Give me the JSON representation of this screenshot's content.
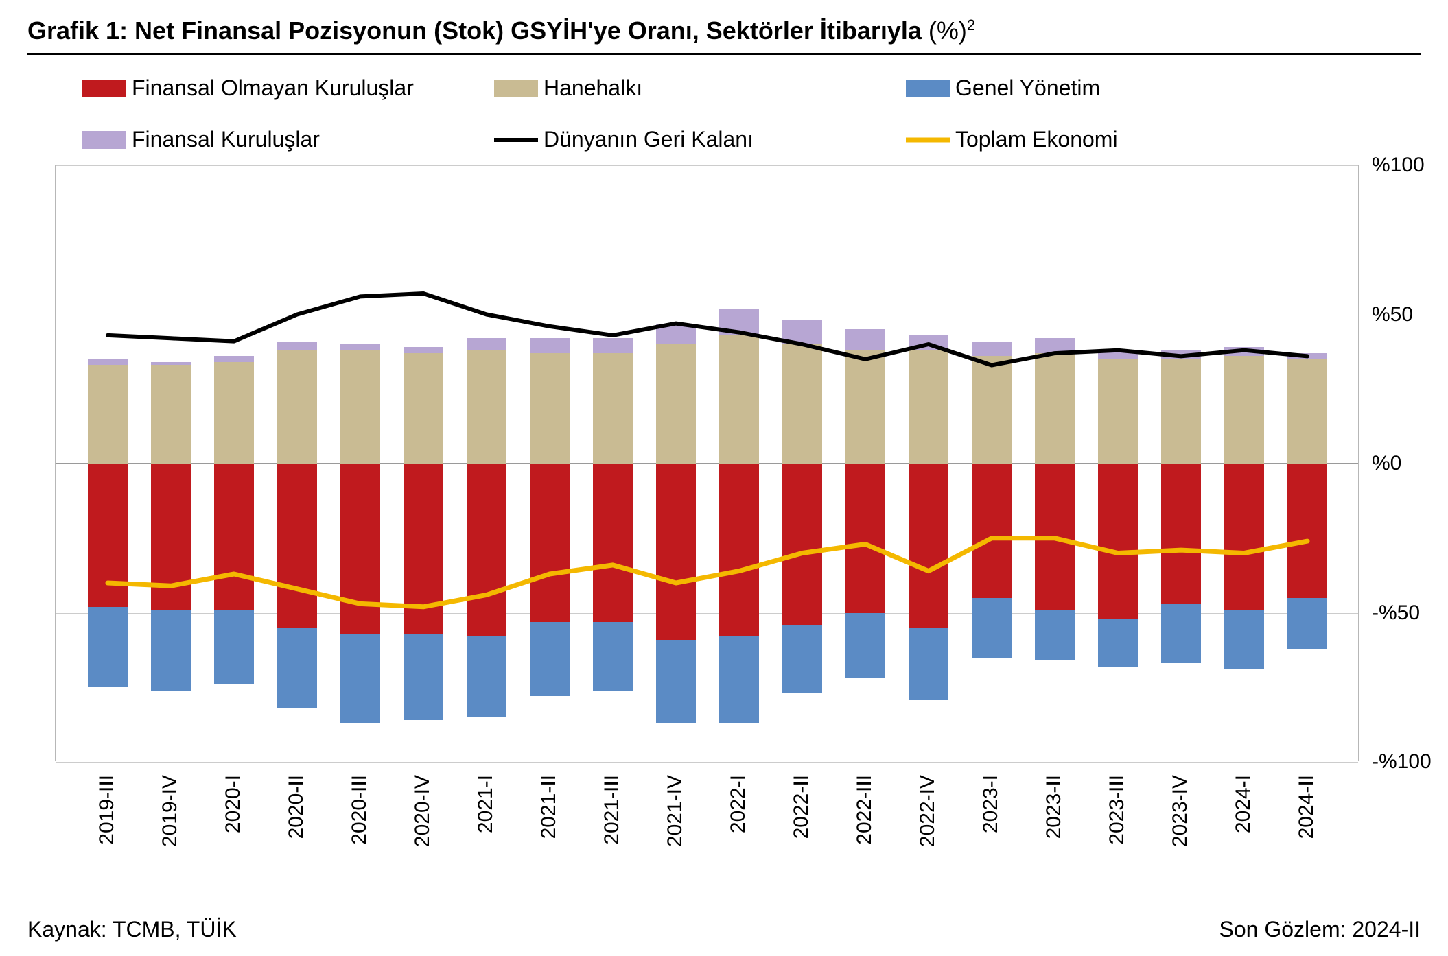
{
  "title": {
    "main": "Grafik 1: Net Finansal Pozisyonun (Stok) GSYİH'ye Oranı, Sektörler İtibarıyla",
    "suffix": " (%)",
    "superscript": "2",
    "fontsize_pt": 27,
    "fontweight": "700",
    "color": "#000000",
    "underline_color": "#000000"
  },
  "footer": {
    "source_label": "Kaynak: TCMB, TÜİK",
    "last_obs_label": "Son Gözlem: 2024-II",
    "fontsize_pt": 24,
    "color": "#000000"
  },
  "legend": {
    "fontsize_pt": 24,
    "items": [
      {
        "key": "nonfin",
        "label": "Finansal Olmayan Kuruluşlar",
        "type": "bar",
        "color": "#c01a1e"
      },
      {
        "key": "house",
        "label": "Hanehalkı",
        "type": "bar",
        "color": "#c9bb93"
      },
      {
        "key": "gov",
        "label": "Genel Yönetim",
        "type": "bar",
        "color": "#5b8bc5"
      },
      {
        "key": "fin",
        "label": "Finansal Kuruluşlar",
        "type": "bar",
        "color": "#b7a6d3"
      },
      {
        "key": "row",
        "label": "Dünyanın Geri Kalanı",
        "type": "line",
        "color": "#000000",
        "line_width": 6
      },
      {
        "key": "total",
        "label": "Toplam Ekonomi",
        "type": "line",
        "color": "#f4b800",
        "line_width": 7
      }
    ]
  },
  "chart": {
    "type": "stacked-bar-with-lines",
    "background_color": "#ffffff",
    "plot_border_color": "#b7b7b7",
    "grid_color": "#cccccc",
    "zero_line_color": "#9a9a9a",
    "y": {
      "min": -100,
      "max": 100,
      "ticks": [
        100,
        50,
        0,
        -50,
        -100
      ],
      "tick_labels": [
        "%100",
        "%50",
        "%0",
        "-%50",
        "-%100"
      ],
      "label_fontsize_pt": 22,
      "label_color": "#000000",
      "label_side": "right"
    },
    "categories": [
      "2019-III",
      "2019-IV",
      "2020-I",
      "2020-II",
      "2020-III",
      "2020-IV",
      "2021-I",
      "2021-II",
      "2021-III",
      "2021-IV",
      "2022-I",
      "2022-II",
      "2022-III",
      "2022-IV",
      "2023-I",
      "2023-II",
      "2023-III",
      "2023-IV",
      "2024-I",
      "2024-II"
    ],
    "bar_width_ratio": 0.62,
    "x_label_fontsize_pt": 22,
    "x_label_rotation_deg": -90,
    "series_bars_positive": [
      {
        "key": "house",
        "color": "#c9bb93",
        "values": [
          33,
          33,
          34,
          38,
          38,
          37,
          38,
          37,
          37,
          40,
          43,
          40,
          38,
          38,
          36,
          37,
          35,
          35,
          36,
          35
        ]
      },
      {
        "key": "fin",
        "color": "#b7a6d3",
        "values": [
          2,
          1,
          2,
          3,
          2,
          2,
          4,
          5,
          5,
          7,
          9,
          8,
          7,
          5,
          5,
          5,
          3,
          3,
          3,
          2
        ]
      }
    ],
    "series_bars_negative": [
      {
        "key": "nonfin",
        "color": "#c01a1e",
        "values": [
          -48,
          -49,
          -49,
          -55,
          -57,
          -57,
          -58,
          -53,
          -53,
          -59,
          -58,
          -54,
          -50,
          -55,
          -45,
          -49,
          -52,
          -47,
          -49,
          -45
        ]
      },
      {
        "key": "gov",
        "color": "#5b8bc5",
        "values": [
          -27,
          -27,
          -25,
          -27,
          -30,
          -29,
          -27,
          -25,
          -23,
          -28,
          -29,
          -23,
          -22,
          -24,
          -20,
          -17,
          -16,
          -20,
          -20,
          -17
        ]
      }
    ],
    "series_lines": [
      {
        "key": "row",
        "color": "#000000",
        "width": 6,
        "values": [
          43,
          42,
          41,
          50,
          56,
          57,
          50,
          46,
          43,
          47,
          44,
          40,
          35,
          40,
          33,
          37,
          38,
          36,
          38,
          36
        ]
      },
      {
        "key": "total",
        "color": "#f4b800",
        "width": 7,
        "values": [
          -40,
          -41,
          -37,
          -42,
          -47,
          -48,
          -44,
          -37,
          -34,
          -40,
          -36,
          -30,
          -27,
          -36,
          -25,
          -25,
          -30,
          -29,
          -30,
          -26
        ]
      }
    ]
  }
}
